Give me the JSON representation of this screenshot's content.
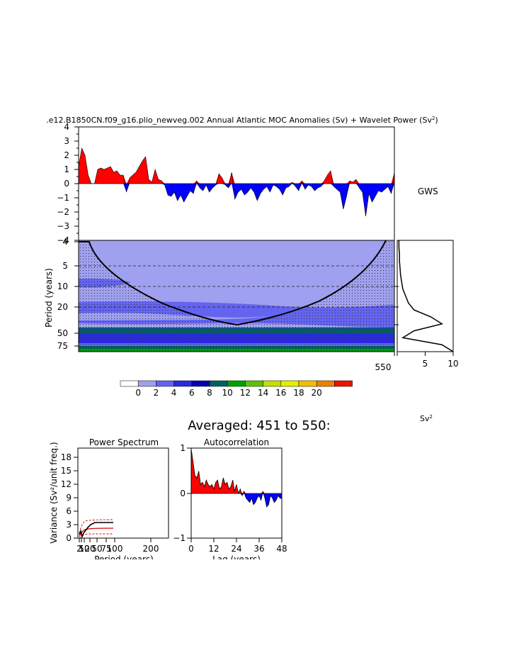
{
  "title_prefix": ".e12.B1850CN.f09_g16.plio_newveg.002 Annual Atlantic MOC Anomalies (Sv) + Wavelet Power (Sv",
  "title_sup": "2",
  "title_suffix": ")",
  "gws_label": "GWS",
  "averaged_label": "Averaged: 451 to 550:",
  "sv2_label": "Sv",
  "sv2_sup": "2",
  "colors": {
    "positive": "#ff0000",
    "negative": "#0000ff",
    "wavelet_bg": "#a0a0f0"
  },
  "chart_data": [
    {
      "id": "anomaly",
      "type": "area",
      "x_range": [
        451,
        550
      ],
      "ylim": [
        -4,
        4
      ],
      "yticks": [
        "4",
        "3",
        "2",
        "1",
        "0",
        "−1",
        "−2",
        "−3",
        "−4"
      ],
      "positive_color": "#ff0000",
      "negative_color": "#0000ff",
      "values": [
        1.2,
        2.5,
        2.0,
        0.6,
        0.0,
        0.0,
        1.0,
        1.1,
        1.0,
        1.1,
        1.2,
        0.8,
        0.9,
        0.6,
        0.6,
        -0.6,
        0.4,
        0.6,
        0.8,
        1.2,
        1.6,
        1.9,
        0.3,
        0.1,
        1.0,
        0.3,
        0.2,
        -0.1,
        -0.8,
        -0.9,
        -0.6,
        -1.2,
        -0.8,
        -1.3,
        -0.9,
        -0.5,
        -0.7,
        0.2,
        -0.3,
        -0.5,
        -0.1,
        -0.6,
        -0.3,
        -0.1,
        0.7,
        0.4,
        -0.1,
        -0.3,
        0.8,
        -1.1,
        -0.6,
        -0.4,
        -0.8,
        -0.6,
        -0.3,
        -0.6,
        -1.2,
        -0.7,
        -0.4,
        -0.2,
        -0.6,
        -0.1,
        -0.2,
        -0.4,
        -0.8,
        -0.3,
        -0.2,
        0.1,
        -0.2,
        -0.5,
        0.2,
        -0.4,
        -0.1,
        -0.2,
        -0.5,
        -0.3,
        -0.2,
        0.2,
        0.6,
        0.9,
        -0.2,
        -0.4,
        -0.6,
        -1.8,
        -0.9,
        0.2,
        0.1,
        0.3,
        -0.3,
        -0.6,
        -2.3,
        -0.7,
        -1.3,
        -0.9,
        -0.5,
        -0.6,
        -0.4,
        -0.2,
        -0.7,
        0.8
      ]
    },
    {
      "id": "wavelet",
      "type": "heatmap",
      "x_range": [
        451,
        550
      ],
      "xtick_labels": [
        "550"
      ],
      "ylabel": "Period (years)",
      "y_tick_labels": [
        "4",
        "5",
        "10",
        "20",
        "50",
        "75"
      ],
      "coi_min_period": 40
    },
    {
      "id": "gws",
      "type": "line",
      "xlim": [
        0,
        10
      ],
      "xtick_labels": [
        "5",
        "10"
      ],
      "x": [
        0.3,
        0.3,
        0.4,
        0.4,
        0.5,
        0.6,
        0.8,
        1.0,
        1.5,
        2.0,
        3.0,
        6.0,
        8.0,
        3.0,
        1.0,
        8.0,
        10.0
      ]
    },
    {
      "id": "colorbar",
      "type": "table",
      "labels": [
        "0",
        "2",
        "4",
        "6",
        "8",
        "10",
        "12",
        "14",
        "16",
        "18",
        "20"
      ],
      "colors": [
        "#ffffff",
        "#a0a0f0",
        "#6464f0",
        "#2a2ae0",
        "#0000b0",
        "#006060",
        "#00a000",
        "#60c000",
        "#c0e000",
        "#e0f000",
        "#f0c000",
        "#f08000",
        "#f01000"
      ]
    },
    {
      "id": "power_spectrum",
      "type": "line",
      "title": "Power Spectrum",
      "xlabel": "Period (years)",
      "ylabel": "Variance (Sv²/unit freq.)",
      "xtick_labels": [
        "2",
        "5",
        "10",
        "20",
        "50",
        "75",
        "100",
        "200"
      ],
      "ytick_labels": [
        "0",
        "3",
        "6",
        "9",
        "12",
        "15",
        "18"
      ],
      "ylim": [
        0,
        20
      ],
      "xlim": [
        0,
        250
      ]
    },
    {
      "id": "autocorrelation",
      "type": "area",
      "title": "Autocorrelation",
      "xlabel": "Lag (years)",
      "xtick_labels": [
        "0",
        "12",
        "24",
        "36",
        "48"
      ],
      "ytick_labels": [
        "1",
        "0",
        "−1"
      ],
      "xlim": [
        0,
        48
      ],
      "ylim": [
        -1,
        1
      ],
      "values": [
        1.0,
        0.7,
        0.4,
        0.35,
        0.5,
        0.2,
        0.25,
        0.15,
        0.3,
        0.2,
        0.15,
        0.2,
        0.1,
        0.25,
        0.3,
        0.1,
        0.15,
        0.35,
        0.2,
        0.25,
        0.1,
        0.15,
        0.3,
        0.05,
        0.2,
        0.0,
        0.1,
        -0.05,
        0.05,
        -0.1,
        -0.15,
        -0.2,
        -0.1,
        -0.25,
        -0.2,
        -0.1,
        -0.05,
        -0.15,
        0.05,
        -0.1,
        -0.3,
        -0.25,
        -0.05,
        -0.1,
        -0.2,
        -0.15,
        -0.05,
        -0.1,
        -0.12
      ]
    }
  ]
}
